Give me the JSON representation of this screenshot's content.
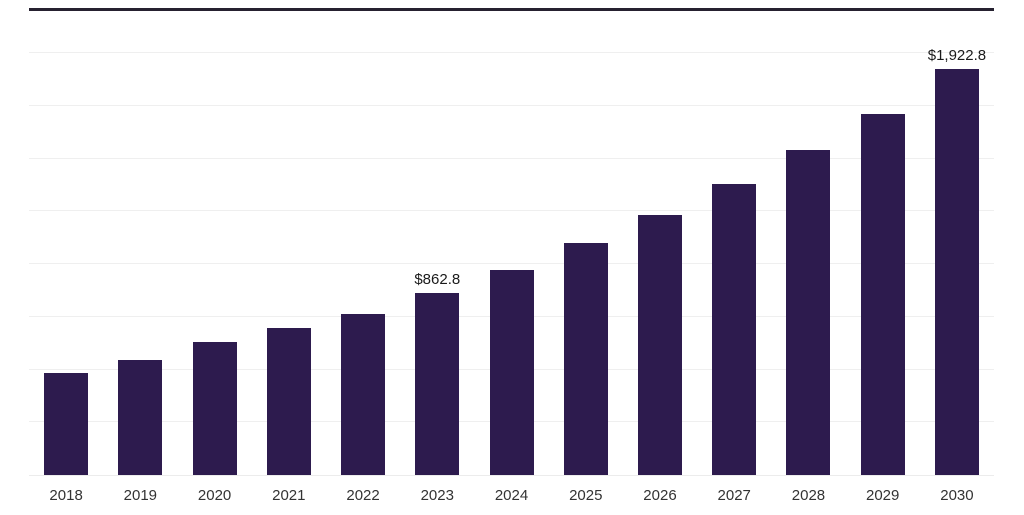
{
  "chart_data": {
    "type": "bar",
    "title": "",
    "categories": [
      "2018",
      "2019",
      "2020",
      "2021",
      "2022",
      "2023",
      "2024",
      "2025",
      "2026",
      "2027",
      "2028",
      "2029",
      "2030"
    ],
    "values": [
      485,
      545,
      630,
      697,
      765,
      862.8,
      973,
      1100,
      1233,
      1380,
      1543,
      1713,
      1922.8
    ],
    "value_labels": [
      "",
      "",
      "",
      "",
      "",
      "$862.8",
      "",
      "",
      "",
      "",
      "",
      "",
      "$1,922.8"
    ],
    "labeled_points": [
      {
        "category": "2023",
        "label": "$862.8"
      },
      {
        "category": "2030",
        "label": "$1,922.8"
      }
    ],
    "xlabel": "",
    "ylabel": "",
    "ylim": [
      0,
      2200
    ],
    "gridline_interval": 250,
    "grid": true,
    "legend": "none",
    "bar_color": "#2d1b4e",
    "top_border_color": "#262130",
    "gridline_color": "#efefef",
    "value_label_color": "#1a1a1a",
    "axis_label_color": "#333333",
    "background": "#ffffff"
  }
}
